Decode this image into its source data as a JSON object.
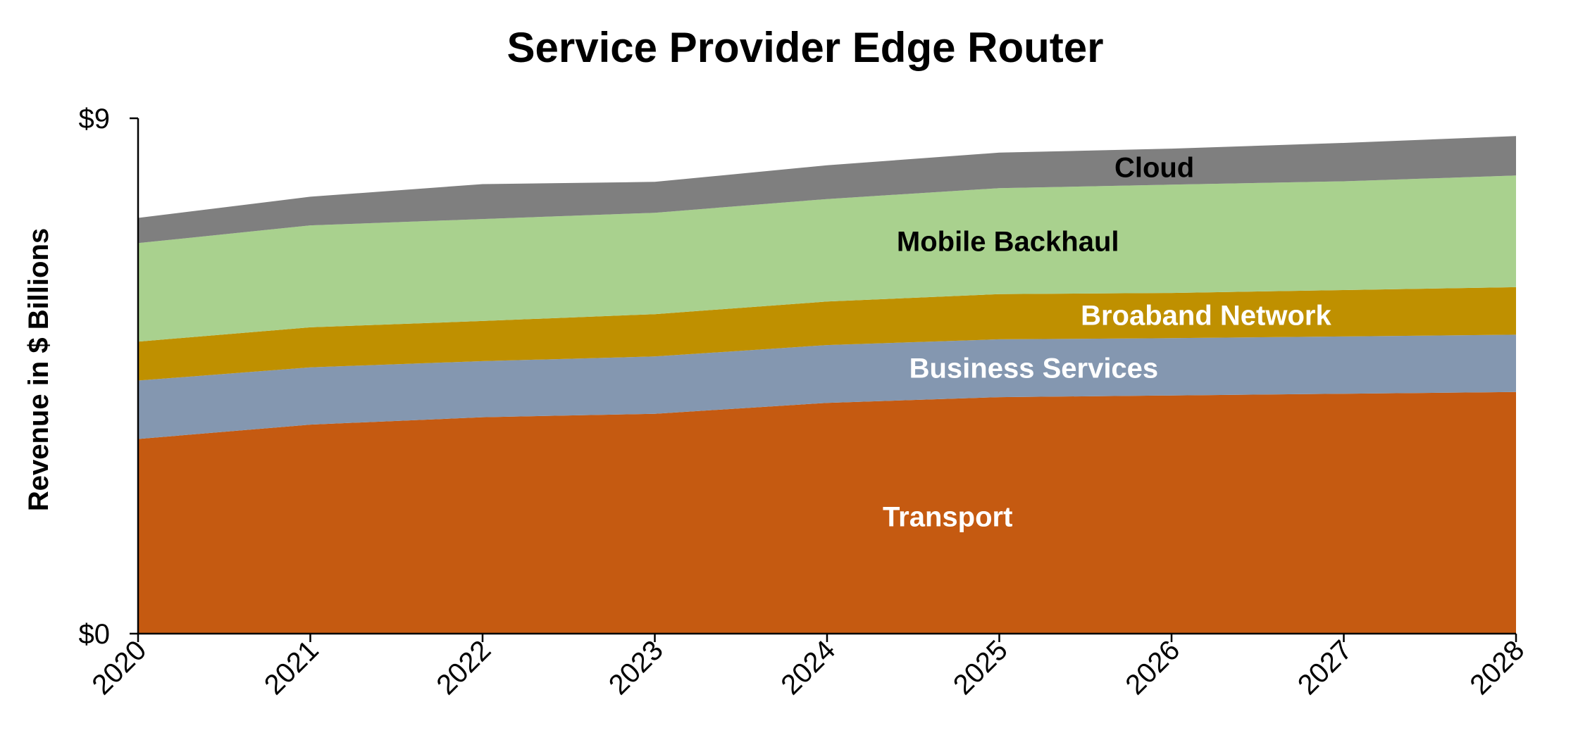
{
  "chart_data": {
    "type": "area",
    "stacked": true,
    "title": "Service Provider Edge Router",
    "xlabel": "",
    "ylabel": "Revenue in $ Billions",
    "x": [
      "2020",
      "2021",
      "2022",
      "2023",
      "2024",
      "2025",
      "2026",
      "2027",
      "2028"
    ],
    "ylim": [
      0,
      9
    ],
    "y_tick_labels": [
      "$0",
      "$9"
    ],
    "grid": false,
    "legend": "none",
    "series": [
      {
        "name": "Transport",
        "color": "#C55A11",
        "label_color": "#FFFFFF",
        "values": [
          3.4,
          3.65,
          3.78,
          3.84,
          4.03,
          4.13,
          4.16,
          4.19,
          4.22
        ]
      },
      {
        "name": "Business Services",
        "color": "#8497B0",
        "label_color": "#FFFFFF",
        "values": [
          1.02,
          1.0,
          0.98,
          1.0,
          1.01,
          1.01,
          1.0,
          1.0,
          1.0
        ]
      },
      {
        "name": "Broaband Network",
        "color": "#BF9000",
        "label_color": "#FFFFFF",
        "values": [
          0.68,
          0.7,
          0.7,
          0.74,
          0.76,
          0.79,
          0.79,
          0.81,
          0.83
        ]
      },
      {
        "name": "Mobile Backhaul",
        "color": "#A9D18E",
        "label_color": "#000000",
        "values": [
          1.72,
          1.78,
          1.78,
          1.77,
          1.79,
          1.85,
          1.89,
          1.9,
          1.95
        ]
      },
      {
        "name": "Cloud",
        "color": "#7F7F7F",
        "label_color": "#000000",
        "values": [
          0.44,
          0.5,
          0.61,
          0.54,
          0.59,
          0.62,
          0.63,
          0.67,
          0.69
        ]
      }
    ]
  }
}
